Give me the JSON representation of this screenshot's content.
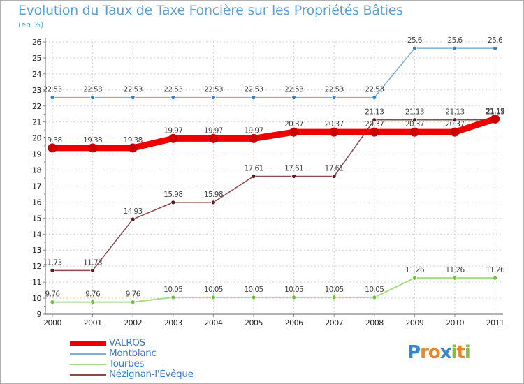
{
  "title": "Evolution du Taux de Taxe Foncière sur les Propriétés Bâties",
  "unit": "(en %)",
  "logo": {
    "text": "Proxiti",
    "letters": [
      "P",
      "r",
      "o",
      "x",
      "i",
      "t",
      "i"
    ],
    "colors": [
      "#3a86d0",
      "#e8862a",
      "#e8862a",
      "#3a86d0",
      "#7ec03a",
      "#e8862a",
      "#7ec03a"
    ]
  },
  "chart_data": {
    "type": "line",
    "title": "Evolution du Taux de Taxe Foncière sur les Propriétés Bâties",
    "ylabel": "(en %)",
    "xlabel": "",
    "ylim": [
      9,
      26
    ],
    "yticks": [
      9,
      10,
      11,
      12,
      13,
      14,
      15,
      16,
      17,
      18,
      19,
      20,
      21,
      22,
      23,
      24,
      25,
      26
    ],
    "x": [
      "2000",
      "2001",
      "2002",
      "2003",
      "2004",
      "2005",
      "2006",
      "2007",
      "2008",
      "2009",
      "2010",
      "2011"
    ],
    "legend_position": "bottom-left",
    "series": [
      {
        "name": "VALROS",
        "color": "#ee0000",
        "marker": "#cc0000",
        "width": 9,
        "dot": 6.5,
        "values": [
          19.38,
          19.38,
          19.38,
          19.97,
          19.97,
          19.97,
          20.37,
          20.37,
          20.37,
          20.37,
          20.37,
          21.19
        ],
        "labels": [
          "19.38",
          "19.38",
          "19.38",
          "19.97",
          "19.97",
          "19.97",
          "20.37",
          "20.37",
          "20.37",
          "20.37",
          "20.37",
          "21.19"
        ]
      },
      {
        "name": "Montblanc",
        "color": "#7aaedc",
        "marker": "#3a7fc0",
        "width": 1.5,
        "dot": 3,
        "values": [
          22.53,
          22.53,
          22.53,
          22.53,
          22.53,
          22.53,
          22.53,
          22.53,
          22.53,
          25.6,
          25.6,
          25.6
        ],
        "labels": [
          "22.53",
          "22.53",
          "22.53",
          "22.53",
          "22.53",
          "22.53",
          "22.53",
          "22.53",
          "22.53",
          "25.6",
          "25.6",
          "25.6"
        ]
      },
      {
        "name": "Tourbes",
        "color": "#a6dc7e",
        "marker": "#6cc23a",
        "width": 2,
        "dot": 3,
        "values": [
          9.76,
          9.76,
          9.76,
          10.05,
          10.05,
          10.05,
          10.05,
          10.05,
          10.05,
          11.26,
          11.26,
          11.26
        ],
        "labels": [
          "9.76",
          "9.76",
          "9.76",
          "10.05",
          "10.05",
          "10.05",
          "10.05",
          "10.05",
          "10.05",
          "11.26",
          "11.26",
          "11.26"
        ]
      },
      {
        "name": "Nézignan-l'Évêque",
        "color": "#8a4a4a",
        "marker": "#5a1a1a",
        "width": 1.5,
        "dot": 3,
        "values": [
          11.73,
          11.73,
          14.93,
          15.98,
          15.98,
          17.61,
          17.61,
          17.61,
          21.13,
          21.13,
          21.13,
          21.13
        ],
        "labels": [
          "11.73",
          "11.73",
          "14.93",
          "15.98",
          "15.98",
          "17.61",
          "17.61",
          "17.61",
          "21.13",
          "21.13",
          "21.13",
          "21.13"
        ]
      }
    ]
  }
}
